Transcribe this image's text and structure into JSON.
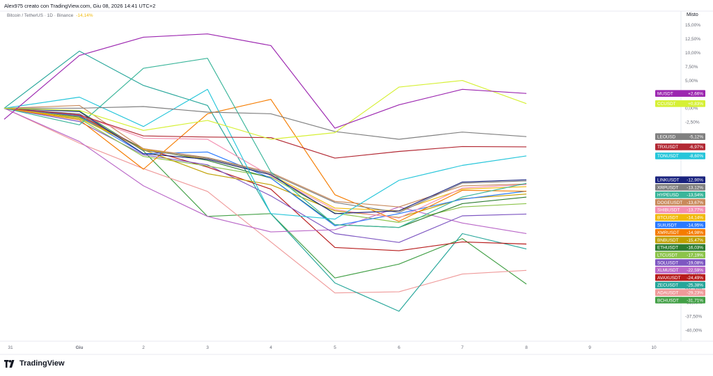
{
  "header": {
    "credit": "Alex975 creato con TradingView.com, Giu 08, 2026 14:41 UTC+2",
    "symbol": "Bitcoin / TetherUS · 1D · Binance",
    "symbol_change": "-14,14%"
  },
  "footer": {
    "brand": "TradingView"
  },
  "chart_data": {
    "type": "line",
    "axis_title": "Misto",
    "x_tick_labels": [
      "31",
      "Giu",
      "2",
      "3",
      "4",
      "5",
      "6",
      "7",
      "8",
      "9",
      "10"
    ],
    "y_tick_values": [
      15,
      12.5,
      10,
      7.5,
      5,
      0,
      -2.5,
      -25,
      -27.5,
      -30,
      -32.5,
      -35,
      -37.5,
      -40
    ],
    "y_tick_labels": [
      "15,00%",
      "12,50%",
      "10,00%",
      "7,50%",
      "5,00%",
      "0,00%",
      "-2,50%",
      "-25,00%",
      "-27,50%",
      "-30,00%",
      "-32,50%",
      "-35,00%",
      "-37,50%",
      "-40,00%"
    ],
    "ylim": [
      -42,
      17.5
    ],
    "series": [
      {
        "name": "MUSDT",
        "label": "+2,66%",
        "color": "#9c27b0",
        "values": [
          -2,
          9.5,
          12.8,
          13.4,
          11.3,
          -3.6,
          0.6,
          3.4,
          2.66
        ]
      },
      {
        "name": "CCUSDT",
        "label": "+0,83%",
        "color": "#d6f035",
        "values": [
          0,
          -0.4,
          -4,
          -2.2,
          -5.6,
          -4.4,
          3.8,
          5,
          0.83
        ]
      },
      {
        "name": "LEOUSD",
        "label": "-5,12%",
        "color": "#808080",
        "values": [
          0,
          0,
          0.3,
          -0.7,
          -1,
          -4.2,
          -5.6,
          -4.3,
          -5.12
        ]
      },
      {
        "name": "TRXUSDT",
        "label": "-6,97%",
        "color": "#b22833",
        "values": [
          0,
          -1.2,
          -5,
          -5.2,
          -5.3,
          -9,
          -7.8,
          -6.9,
          -6.97
        ]
      },
      {
        "name": "TONUSDT",
        "label": "-8,60%",
        "color": "#26c6da",
        "values": [
          0,
          2,
          -3.3,
          3.4,
          -19,
          -20,
          -13,
          -10.3,
          -8.6
        ]
      },
      {
        "name": "LINKUSDT",
        "label": "-12,90%",
        "color": "#1a237e",
        "values": [
          0,
          -0.6,
          -8.2,
          -9.2,
          -12,
          -19,
          -18.5,
          -13.3,
          -12.9
        ]
      },
      {
        "name": "XRPUSDT",
        "label": "-13,12%",
        "color": "#7f7f7f",
        "values": [
          0,
          -1,
          -7.6,
          -9,
          -11.8,
          -17,
          -18.8,
          -13.5,
          -13.12
        ]
      },
      {
        "name": "HYPEUSD",
        "label": "-13,54%",
        "color": "#3ab59a",
        "values": [
          0,
          -3,
          7.2,
          9,
          -11.5,
          -21,
          -21.5,
          -16,
          -13.54
        ]
      },
      {
        "name": "SHIBUSDT",
        "label": "-13,77%",
        "color": "#f48fb1",
        "values": [
          0,
          -1.2,
          -5.4,
          -5.6,
          -12.2,
          -18.3,
          -19.8,
          -14.4,
          -13.77
        ]
      },
      {
        "name": "DOGEUSDT",
        "label": "-13,67%",
        "color": "#c98a5c",
        "values": [
          0,
          0.5,
          -7.3,
          -8.9,
          -11.6,
          -16.8,
          -17.8,
          -14,
          -13.67
        ]
      },
      {
        "name": "BTCUSDT",
        "label": "-14,14%",
        "color": "#f0b90b",
        "values": [
          0,
          -1.8,
          -7.4,
          -9.2,
          -12,
          -18,
          -18.5,
          -14.6,
          -14.14
        ]
      },
      {
        "name": "XMRUSDT",
        "label": "-14,98%",
        "color": "#f57c00",
        "values": [
          0,
          -2.1,
          -11,
          -1,
          1.6,
          -15.6,
          -20.4,
          -14.8,
          -14.98
        ]
      },
      {
        "name": "SUIUSDT",
        "label": "-14,95%",
        "color": "#2979ff",
        "values": [
          0,
          -1.4,
          -8.2,
          -7.9,
          -12.6,
          -21.2,
          -19,
          -16.4,
          -14.95
        ]
      },
      {
        "name": "BNBUSDT",
        "label": "-15,47%",
        "color": "#c0a000",
        "values": [
          0,
          -1.5,
          -7.5,
          -11.8,
          -13.8,
          -18.5,
          -19.7,
          -16.3,
          -15.47
        ]
      },
      {
        "name": "ETHUSDT",
        "label": "-16,03%",
        "color": "#2e7d32",
        "values": [
          0,
          -1.6,
          -7.3,
          -9.4,
          -12.6,
          -21,
          -21.5,
          -17.2,
          -16.03
        ]
      },
      {
        "name": "LTCUSDT",
        "label": "-17,19%",
        "color": "#8bc34a",
        "values": [
          0,
          -1.9,
          -8.7,
          -10.4,
          -12.4,
          -18.9,
          -20.6,
          -17.8,
          -17.19
        ]
      },
      {
        "name": "SOLUSDT",
        "label": "-19,08%",
        "color": "#7e57c2",
        "values": [
          0,
          -2.4,
          -8.4,
          -10.2,
          -15.8,
          -22.6,
          -24.2,
          -19.4,
          -19.08
        ]
      },
      {
        "name": "XLMUSDT",
        "label": "-22,59%",
        "color": "#ba68c8",
        "values": [
          0,
          -6,
          -14,
          -19.5,
          -22.3,
          -21.9,
          -17.8,
          -20.7,
          -22.59
        ]
      },
      {
        "name": "AVAXUSDT",
        "label": "-24,49%",
        "color": "#b71c1c",
        "values": [
          0,
          -1.3,
          -7.3,
          -10.6,
          -14.6,
          -25.1,
          -25.7,
          -24.1,
          -24.49
        ]
      },
      {
        "name": "ZECUSDT",
        "label": "-25,38%",
        "color": "#26a69a",
        "values": [
          0,
          10.3,
          4.1,
          0.5,
          -19,
          -31.5,
          -36.6,
          -22.6,
          -25.38
        ]
      },
      {
        "name": "ADAUSDT",
        "label": "-29,23%",
        "color": "#ef9a9a",
        "values": [
          0,
          -6.3,
          -10.9,
          -15,
          -24.1,
          -33.3,
          -33.1,
          -29.9,
          -29.23
        ]
      },
      {
        "name": "BCHUSDT",
        "label": "-31,71%",
        "color": "#43a047",
        "values": [
          0,
          -0.5,
          -7.7,
          -19.5,
          -19,
          -30.6,
          -28.1,
          -23.5,
          -31.71
        ]
      }
    ]
  }
}
